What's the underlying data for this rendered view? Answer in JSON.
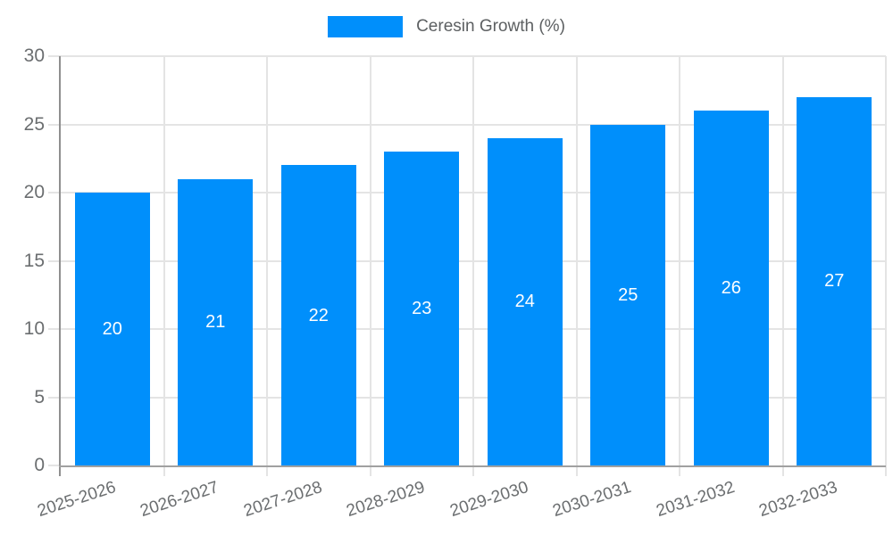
{
  "legend": {
    "label": "Ceresin Growth (%)"
  },
  "colors": {
    "bar": "#008FFB",
    "grid": "#e4e4e4",
    "axis_line": "#a0a0a0",
    "y_axis_line": "#8f8f8f",
    "axis_text": "#6b6e70",
    "legend_text": "#5d6062",
    "value_text": "#ffffff",
    "background": "#ffffff"
  },
  "chart_data": {
    "type": "bar",
    "title": "",
    "categories": [
      "2025-2026",
      "2026-2027",
      "2027-2028",
      "2028-2029",
      "2029-2030",
      "2030-2031",
      "2031-2032",
      "2032-2033"
    ],
    "series": [
      {
        "name": "Ceresin Growth (%)",
        "values": [
          20,
          21,
          22,
          23,
          24,
          25,
          26,
          27
        ]
      }
    ],
    "xlabel": "",
    "ylabel": "",
    "ylim": [
      0,
      30
    ],
    "yticks": [
      0,
      5,
      10,
      15,
      20,
      25,
      30
    ],
    "grid": true,
    "legend_position": "top",
    "data_labels": "inside-center",
    "x_label_rotation_deg": -18
  }
}
